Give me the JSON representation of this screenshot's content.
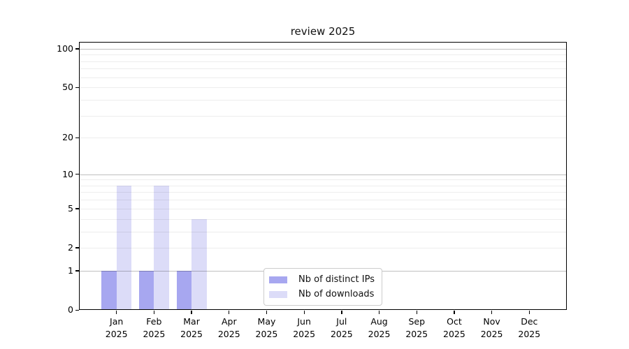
{
  "chart_data": {
    "type": "bar",
    "title": "review 2025",
    "categories": [
      "Jan 2025",
      "Feb 2025",
      "Mar 2025",
      "Apr 2025",
      "May 2025",
      "Jun 2025",
      "Jul 2025",
      "Aug 2025",
      "Sep 2025",
      "Oct 2025",
      "Nov 2025",
      "Dec 2025"
    ],
    "series": [
      {
        "name": "Nb of distinct IPs",
        "color": "#a7a7f0",
        "values": [
          1,
          1,
          1,
          0,
          0,
          0,
          0,
          0,
          0,
          0,
          0,
          0
        ]
      },
      {
        "name": "Nb of downloads",
        "color": "#dcdcf8",
        "values": [
          8,
          8,
          4,
          0,
          0,
          0,
          0,
          0,
          0,
          0,
          0,
          0
        ]
      }
    ],
    "xlabel": "",
    "ylabel": "",
    "y_scale": "log1p",
    "y_ticks": [
      0,
      1,
      2,
      5,
      10,
      20,
      50,
      100
    ],
    "grid_values": [
      1,
      2,
      3,
      4,
      5,
      6,
      7,
      8,
      9,
      10,
      20,
      30,
      40,
      50,
      60,
      70,
      80,
      90,
      100
    ],
    "ylim": [
      0,
      113
    ],
    "grid": true,
    "legend_position": "lower center"
  },
  "colors": {
    "background": "#ffffff",
    "axis": "#000000",
    "grid_minor": "rgba(0,0,0,0.07)",
    "grid_major": "rgba(0,0,0,0.25)",
    "legend_border": "#cccccc",
    "text": "#000000"
  }
}
